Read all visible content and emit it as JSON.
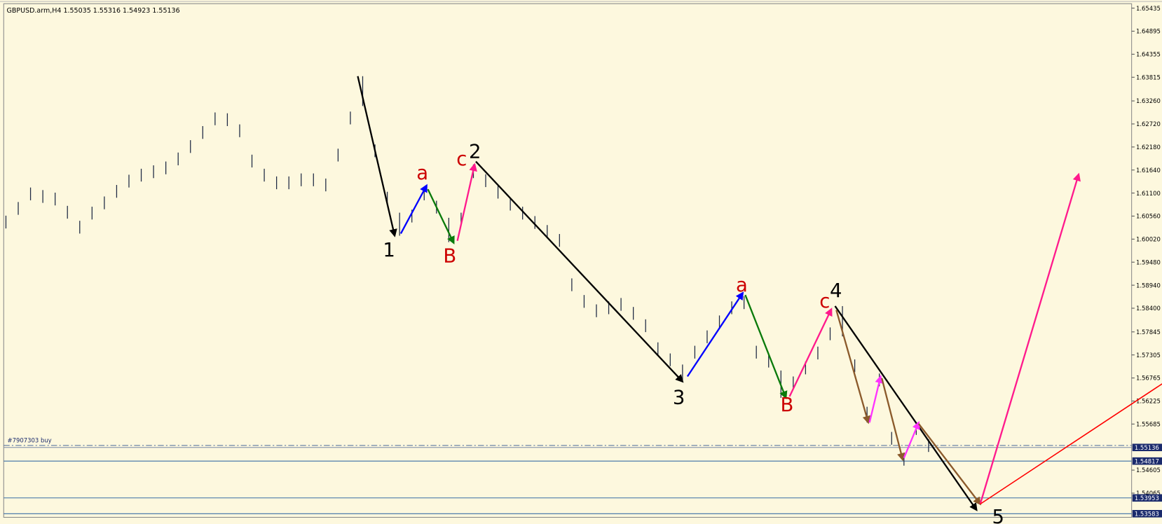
{
  "chart_data": {
    "type": "ohlc",
    "header": "GBPUSD.arm,H4  1.55035 1.55316 1.54923 1.55136",
    "bar_color": "#1f2a44",
    "highs": [
      1.6057,
      1.6089,
      1.6123,
      1.6117,
      1.6111,
      1.608,
      1.6045,
      1.6078,
      1.6102,
      1.6129,
      1.6153,
      1.6167,
      1.6175,
      1.6184,
      1.6205,
      1.6234,
      1.6267,
      1.6299,
      1.6297,
      1.6271,
      1.62,
      1.6167,
      1.6149,
      1.6149,
      1.6156,
      1.6156,
      1.6144,
      1.6214,
      1.6301,
      1.6384,
      1.6224,
      1.6113,
      1.6064,
      1.6071,
      1.6123,
      1.6092,
      1.6052,
      1.6064,
      1.6177,
      1.6154,
      1.6127,
      1.6099,
      1.6078,
      1.6056,
      1.6035,
      1.6014,
      1.591,
      1.5871,
      1.5849,
      1.5856,
      1.5864,
      1.5843,
      1.5814,
      1.576,
      1.5734,
      1.5708,
      1.5752,
      1.5788,
      1.5823,
      1.5856,
      1.5868,
      1.5752,
      1.5731,
      1.5694,
      1.568,
      1.5715,
      1.575,
      1.5795,
      1.5845,
      1.572,
      1.5609,
      1.5687,
      1.555,
      1.5501,
      1.5573,
      1.5533
    ],
    "lows": [
      1.6027,
      1.6059,
      1.6093,
      1.6087,
      1.6081,
      1.605,
      1.6015,
      1.6048,
      1.6072,
      1.6099,
      1.6123,
      1.6137,
      1.6145,
      1.6154,
      1.6175,
      1.6204,
      1.6237,
      1.6269,
      1.6267,
      1.6241,
      1.617,
      1.6137,
      1.6119,
      1.6119,
      1.6126,
      1.6126,
      1.6114,
      1.6184,
      1.6271,
      1.6314,
      1.6194,
      1.6083,
      1.601,
      1.6041,
      1.6093,
      1.6062,
      1.5995,
      1.6034,
      1.6145,
      1.6124,
      1.6097,
      1.6069,
      1.6048,
      1.6026,
      1.6005,
      1.5984,
      1.588,
      1.5841,
      1.5819,
      1.5826,
      1.5834,
      1.5813,
      1.5784,
      1.573,
      1.5704,
      1.5668,
      1.5722,
      1.5758,
      1.5793,
      1.5826,
      1.5838,
      1.5722,
      1.5701,
      1.563,
      1.565,
      1.5685,
      1.572,
      1.5765,
      1.5774,
      1.569,
      1.5572,
      1.5657,
      1.552,
      1.5471,
      1.5543,
      1.5503
    ],
    "xlim": [
      0,
      91.5
    ],
    "ylim": [
      1.53498,
      1.65539
    ],
    "yticks": [
      1.65435,
      1.64895,
      1.64355,
      1.63815,
      {
        "value": 1.6326,
        "label": "1.63260"
      },
      {
        "value": 1.6272,
        "label": "1.62720"
      },
      {
        "value": 1.6218,
        "label": "1.62180"
      },
      {
        "value": 1.6164,
        "label": "1.61640"
      },
      {
        "value": 1.611,
        "label": "1.61100"
      },
      {
        "value": 1.6056,
        "label": "1.60560"
      },
      {
        "value": 1.6002,
        "label": "1.60020"
      },
      {
        "value": 1.5948,
        "label": "1.59480"
      },
      {
        "value": 1.5894,
        "label": "1.58940"
      },
      {
        "value": 1.584,
        "label": "1.58400"
      },
      1.57845,
      1.57305,
      1.56765,
      1.56225,
      1.55685,
      1.54605,
      1.54065
    ],
    "price_lines": [
      1.55136,
      1.54817,
      1.53953,
      1.53583
    ],
    "order_line": {
      "label": "#7907303 buy",
      "value": 1.55183
    },
    "arrows": [
      {
        "color": "#000000",
        "x": [
          28.6,
          31.6
        ],
        "y": [
          1.6384,
          1.601
        ]
      },
      {
        "color": "#0000ff",
        "x": [
          32.1,
          34.2
        ],
        "y": [
          1.6015,
          1.6128
        ]
      },
      {
        "color": "#0a7a0a",
        "x": [
          34.3,
          36.4
        ],
        "y": [
          1.6119,
          1.5993
        ]
      },
      {
        "color": "#ff1a8c",
        "x": [
          36.7,
          38.1
        ],
        "y": [
          1.5998,
          1.6177
        ]
      },
      {
        "color": "#000000",
        "x": [
          38.2,
          55.0
        ],
        "y": [
          1.6184,
          1.5668
        ]
      },
      {
        "color": "#0000ff",
        "x": [
          55.4,
          59.9
        ],
        "y": [
          1.568,
          1.5876
        ]
      },
      {
        "color": "#0a7a0a",
        "x": [
          60.1,
          63.4
        ],
        "y": [
          1.5871,
          1.563
        ]
      },
      {
        "color": "#ff1a8c",
        "x": [
          63.7,
          67.1
        ],
        "y": [
          1.5633,
          1.5838
        ]
      },
      {
        "color": "#000000",
        "x": [
          67.4,
          78.9
        ],
        "y": [
          1.5845,
          1.5367
        ]
      },
      {
        "color": "#8b5a2b",
        "x": [
          67.5,
          70.1
        ],
        "y": [
          1.5836,
          1.5572
        ]
      },
      {
        "color": "#ff33ff",
        "x": [
          70.2,
          71.1
        ],
        "y": [
          1.5572,
          1.568
        ]
      },
      {
        "color": "#8b5a2b",
        "x": [
          71.2,
          72.9
        ],
        "y": [
          1.5676,
          1.5485
        ]
      },
      {
        "color": "#ff33ff",
        "x": [
          73.0,
          74.2
        ],
        "y": [
          1.5489,
          1.5572
        ]
      },
      {
        "color": "#8b5a2b",
        "x": [
          74.2,
          79.2
        ],
        "y": [
          1.5569,
          1.5381
        ]
      },
      {
        "color": "#ff1a8c",
        "x": [
          79.2,
          87.2
        ],
        "y": [
          1.5381,
          1.6154
        ]
      }
    ],
    "trend_line": {
      "color": "#ff0000",
      "x": [
        79.2,
        94.0
      ],
      "y": [
        1.5381,
        1.5663
      ]
    },
    "wave_labels": [
      {
        "text": "1",
        "color": "#000000"
      },
      {
        "text": "a",
        "color": "#cc0000"
      },
      {
        "text": "B",
        "color": "#cc0000"
      },
      {
        "text": "c",
        "color": "#cc0000"
      },
      {
        "text": "2",
        "color": "#000000"
      },
      {
        "text": "3",
        "color": "#000000"
      },
      {
        "text": "a",
        "color": "#cc0000"
      },
      {
        "text": "B",
        "color": "#cc0000"
      },
      {
        "text": "c",
        "color": "#cc0000"
      },
      {
        "text": "4",
        "color": "#000000"
      },
      {
        "text": "5",
        "color": "#000000"
      }
    ]
  }
}
